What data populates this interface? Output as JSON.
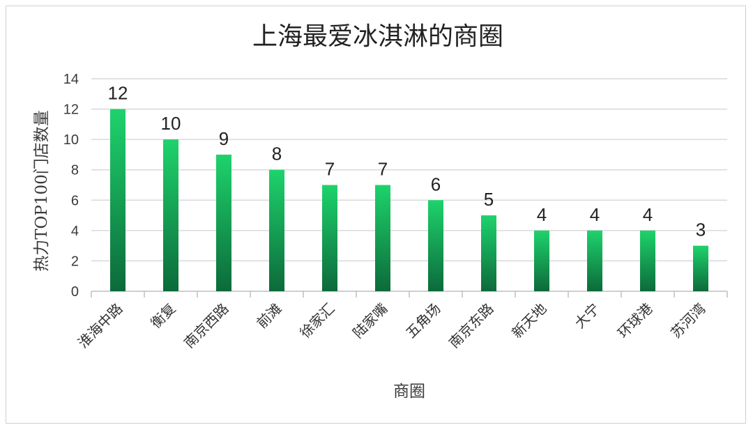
{
  "chart_data": {
    "type": "bar",
    "title": "上海最爱冰淇淋的商圈",
    "xlabel": "商圈",
    "ylabel": "热力TOP100门店数量",
    "categories": [
      "淮海中路",
      "衡复",
      "南京西路",
      "前滩",
      "徐家汇",
      "陆家嘴",
      "五角场",
      "南京东路",
      "新天地",
      "大宁",
      "环球港",
      "苏河湾"
    ],
    "values": [
      12,
      10,
      9,
      8,
      7,
      7,
      6,
      5,
      4,
      4,
      4,
      3
    ],
    "ylim": [
      0,
      14
    ],
    "yticks": [
      0,
      2,
      4,
      6,
      8,
      10,
      12,
      14
    ],
    "grid": true,
    "legend": "none",
    "data_labels": true,
    "colors": {
      "bar_top": "#1ed36c",
      "bar_bottom": "#0c6a3a",
      "grid": "#d9d9d9",
      "axis": "#bfbfbf"
    }
  }
}
